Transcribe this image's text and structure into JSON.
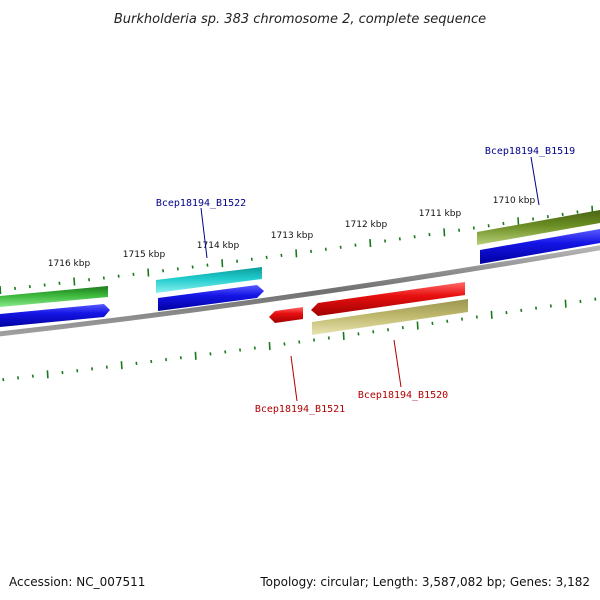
{
  "title": "Burkholderia sp. 383 chromosome 2, complete sequence",
  "footer": {
    "accession": "Accession: NC_007511",
    "summary": "Topology: circular; Length: 3,587,082 bp; Genes: 3,182"
  },
  "ticks": [
    {
      "label": "1716 kbp"
    },
    {
      "label": "1715 kbp"
    },
    {
      "label": "1714 kbp"
    },
    {
      "label": "1713 kbp"
    },
    {
      "label": "1712 kbp"
    },
    {
      "label": "1711 kbp"
    },
    {
      "label": "1710 kbp"
    }
  ],
  "gene_labels": [
    {
      "name": "Bcep18194_B1519",
      "color": "#00008b"
    },
    {
      "name": "Bcep18194_B1522",
      "color": "#00008b"
    },
    {
      "name": "Bcep18194_B1521",
      "color": "#b00000"
    },
    {
      "name": "Bcep18194_B1520",
      "color": "#b00000"
    }
  ],
  "colors": {
    "backbone": "#808080",
    "tick": "#1a7a1a",
    "cds_blue": "#1010e0",
    "cds_red": "#e01010",
    "gene_cyan": "#20c8c8",
    "gene_lightgreen": "#44bb44",
    "gene_olive": "#6b8e23",
    "gene_khaki": "#bdb76b"
  }
}
